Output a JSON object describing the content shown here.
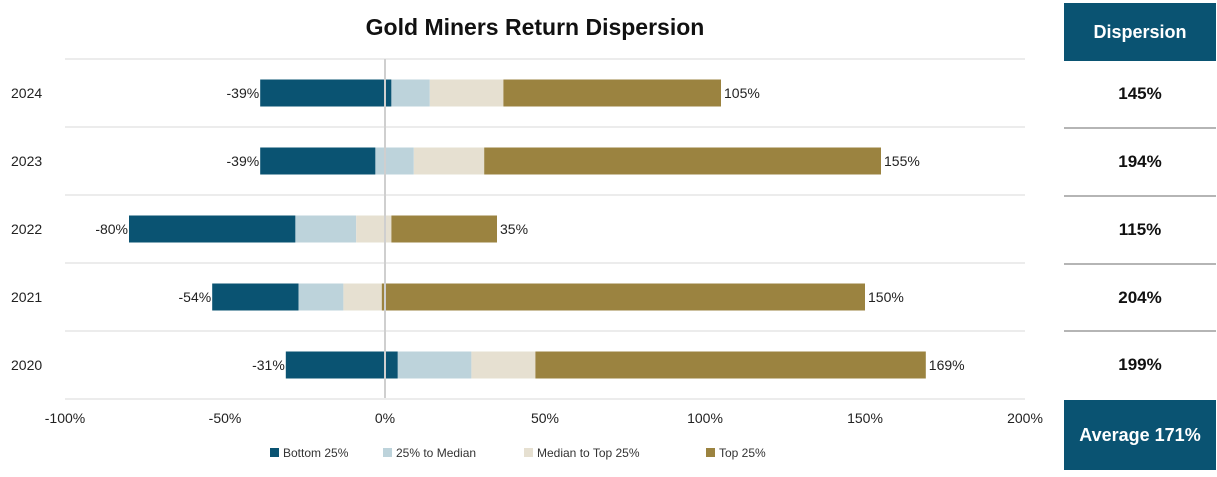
{
  "chart_data": {
    "type": "bar",
    "subtype": "horizontal-stacked-range",
    "title": "Gold Miners Return Dispersion",
    "categories": [
      "2024",
      "2023",
      "2022",
      "2021",
      "2020"
    ],
    "series": [
      {
        "name": "Bottom 25%",
        "color": "#0a5372",
        "ranges": [
          [
            -39,
            2
          ],
          [
            -39,
            -3
          ],
          [
            -80,
            -28
          ],
          [
            -54,
            -27
          ],
          [
            -31,
            4
          ]
        ]
      },
      {
        "name": "25% to Median",
        "color": "#bdd3db",
        "ranges": [
          [
            2,
            14
          ],
          [
            -3,
            9
          ],
          [
            -28,
            -9
          ],
          [
            -27,
            -13
          ],
          [
            4,
            27
          ]
        ]
      },
      {
        "name": "Median to Top 25%",
        "color": "#e6e0d1",
        "ranges": [
          [
            14,
            37
          ],
          [
            9,
            31
          ],
          [
            -9,
            2
          ],
          [
            -13,
            -1
          ],
          [
            27,
            47
          ]
        ]
      },
      {
        "name": "Top 25%",
        "color": "#9b8340",
        "ranges": [
          [
            37,
            105
          ],
          [
            31,
            155
          ],
          [
            2,
            35
          ],
          [
            -1,
            150
          ],
          [
            47,
            169
          ]
        ]
      }
    ],
    "min_labels": [
      "-39%",
      "-39%",
      "-80%",
      "-54%",
      "-31%"
    ],
    "max_labels": [
      "105%",
      "155%",
      "35%",
      "150%",
      "169%"
    ],
    "x_ticks": [
      "-100%",
      "-50%",
      "0%",
      "50%",
      "100%",
      "150%",
      "200%"
    ],
    "xlim": [
      -100,
      200
    ],
    "legend_position": "bottom",
    "grid": "horizontal"
  },
  "side_table": {
    "header": "Dispersion",
    "values": [
      "145%",
      "194%",
      "115%",
      "204%",
      "199%"
    ],
    "footer": "Average 171%"
  }
}
